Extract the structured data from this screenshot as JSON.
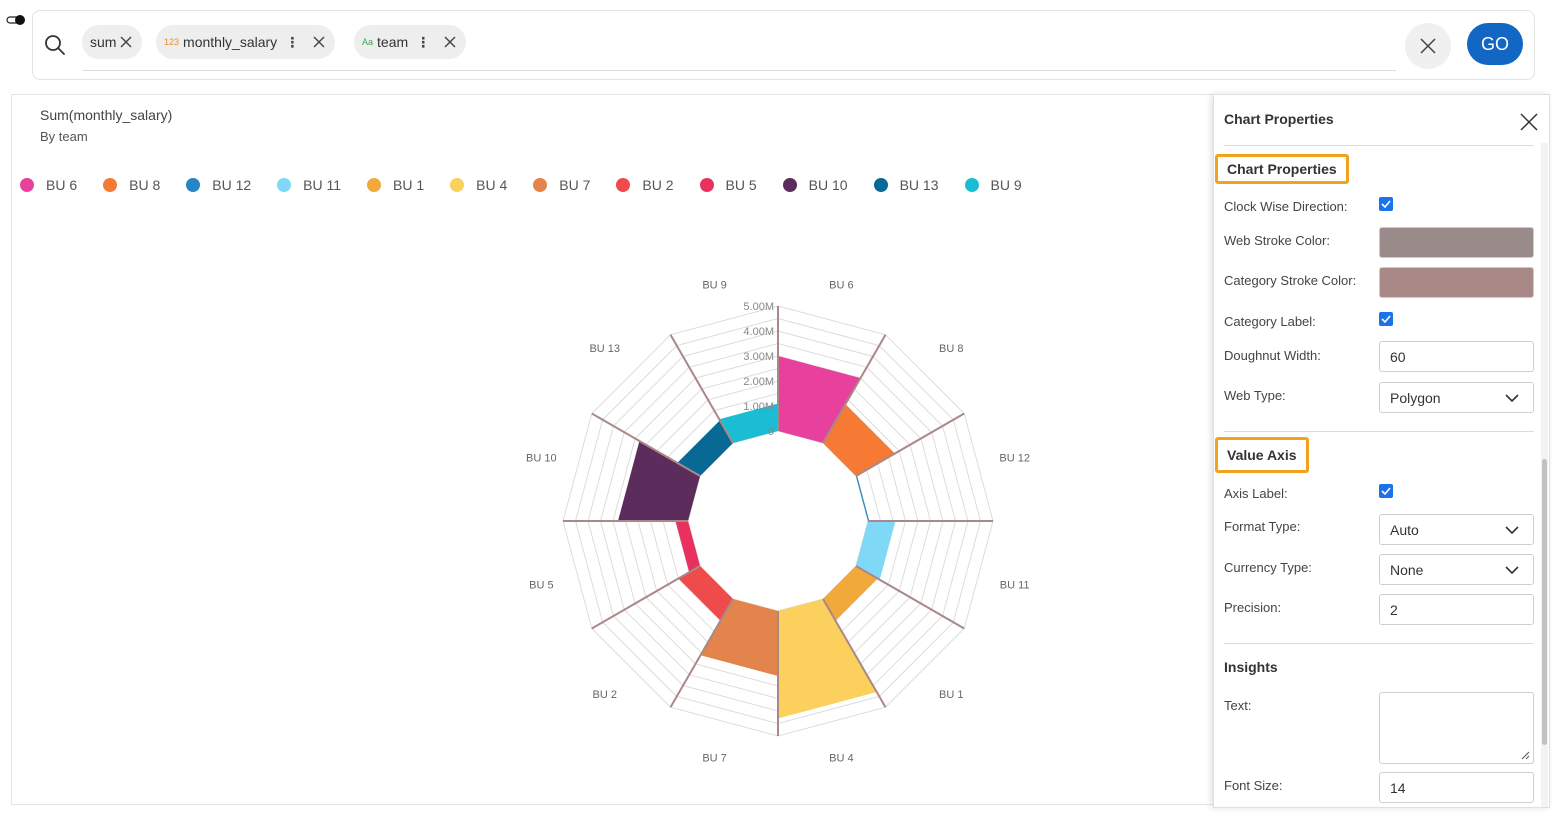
{
  "search": {
    "chips": [
      {
        "label": "sum",
        "prefix": "",
        "prefix_color": "",
        "has_menu": false
      },
      {
        "label": "monthly_salary",
        "prefix": "123",
        "prefix_color": "#f08a24",
        "has_menu": true
      },
      {
        "label": "team",
        "prefix": "Aa",
        "prefix_color": "#3aa655",
        "has_menu": true
      }
    ],
    "go_label": "GO"
  },
  "chart": {
    "title": "Sum(monthly_salary)",
    "subtitle": "By team"
  },
  "chart_data": {
    "type": "radar-doughnut",
    "series_field": "team",
    "legend": [
      {
        "name": "BU 6",
        "color": "#e8419d"
      },
      {
        "name": "BU 8",
        "color": "#f77a34"
      },
      {
        "name": "BU 12",
        "color": "#2684c7"
      },
      {
        "name": "BU 11",
        "color": "#7fd8f5"
      },
      {
        "name": "BU 1",
        "color": "#f2a93b"
      },
      {
        "name": "BU 4",
        "color": "#fcd05c"
      },
      {
        "name": "BU 7",
        "color": "#e2844b"
      },
      {
        "name": "BU 2",
        "color": "#ef4b4b"
      },
      {
        "name": "BU 5",
        "color": "#e8315f"
      },
      {
        "name": "BU 10",
        "color": "#5c2d5c"
      },
      {
        "name": "BU 13",
        "color": "#086a94"
      },
      {
        "name": "BU 9",
        "color": "#1bbdd4"
      }
    ],
    "categories": [
      "BU 6",
      "BU 8",
      "BU 12",
      "BU 11",
      "BU 1",
      "BU 4",
      "BU 7",
      "BU 2",
      "BU 5",
      "BU 10",
      "BU 13",
      "BU 9"
    ],
    "values": [
      3000000,
      1800000,
      50000,
      1100000,
      1000000,
      4300000,
      2600000,
      1000000,
      500000,
      2800000,
      1050000,
      1100000
    ],
    "value_axis": {
      "min": 0,
      "max": 5000000,
      "ticks": [
        "0",
        "1.00M",
        "2.00M",
        "3.00M",
        "4.00M",
        "5.00M"
      ]
    },
    "clockwise": true,
    "web_type": "polygon",
    "web_stroke_color": "#9a8b8b",
    "category_stroke_color": "#a98987"
  },
  "panel": {
    "header": "Chart Properties",
    "section_chart": "Chart Properties",
    "clockwise_label": "Clock Wise Direction:",
    "web_stroke_label": "Web Stroke Color:",
    "web_stroke_color": "#9a8b8b",
    "category_stroke_label": "Category Stroke Color:",
    "category_stroke_color": "#a98987",
    "category_label_label": "Category Label:",
    "doughnut_width_label": "Doughnut Width:",
    "doughnut_width_value": "60",
    "web_type_label": "Web Type:",
    "web_type_value": "Polygon",
    "section_value_axis": "Value Axis",
    "axis_label_label": "Axis Label:",
    "format_type_label": "Format Type:",
    "format_type_value": "Auto",
    "currency_type_label": "Currency Type:",
    "currency_type_value": "None",
    "precision_label": "Precision:",
    "precision_value": "2",
    "section_insights": "Insights",
    "text_label": "Text:",
    "font_size_label": "Font Size:",
    "font_size_value": "14"
  }
}
